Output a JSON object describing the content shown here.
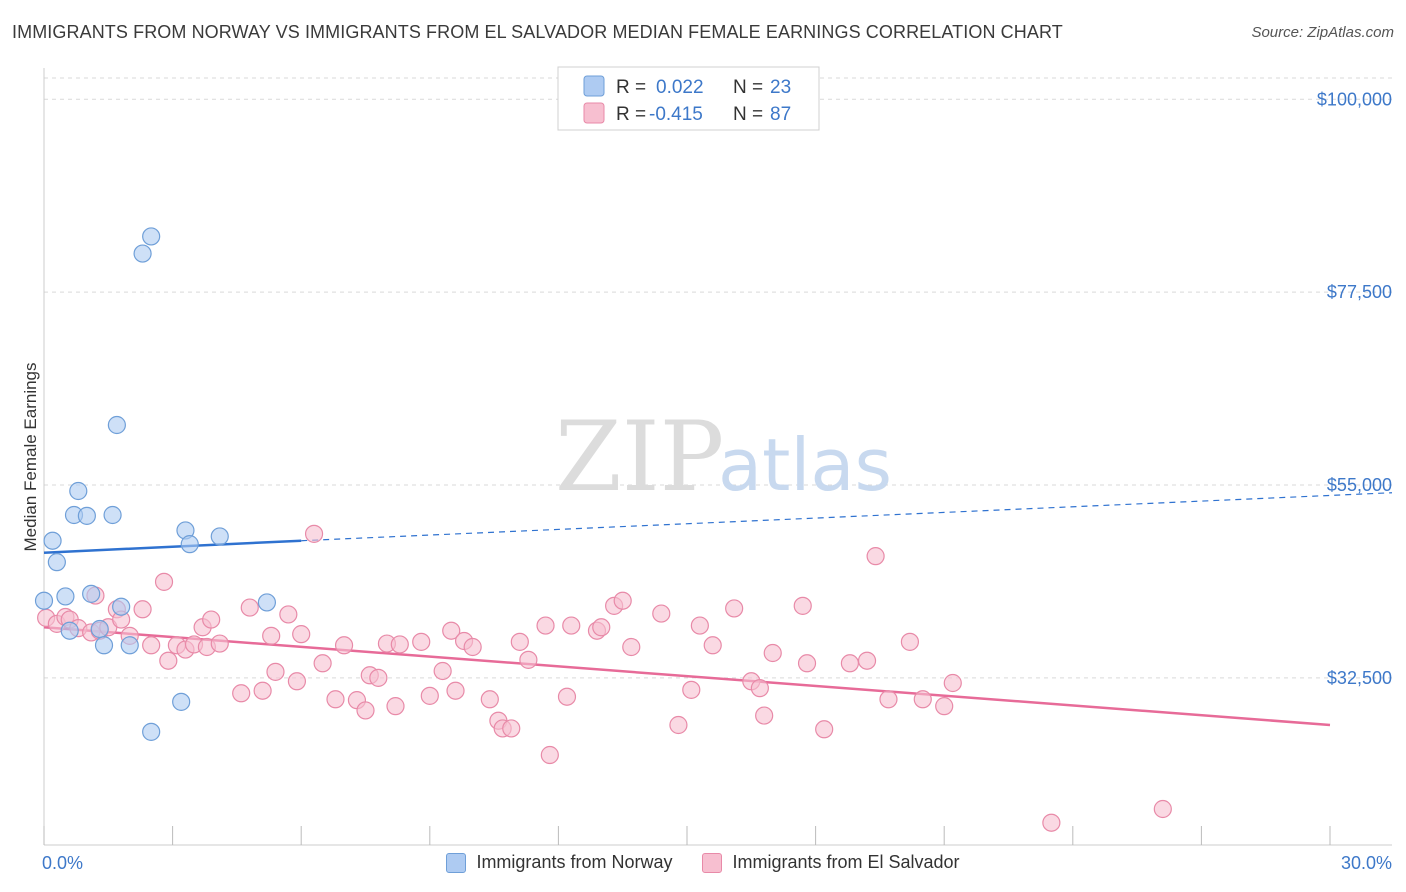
{
  "title": "IMMIGRANTS FROM NORWAY VS IMMIGRANTS FROM EL SALVADOR MEDIAN FEMALE EARNINGS CORRELATION CHART",
  "source": "Source: ZipAtlas.com",
  "watermark": {
    "zip": "ZIP",
    "atlas": "atlas"
  },
  "colors": {
    "norway_fill": "#aecbf2",
    "norway_stroke": "#6f9fd8",
    "norway_line": "#2f72d0",
    "salvador_fill": "#f7bfd0",
    "salvador_stroke": "#e88aa8",
    "salvador_line": "#e76b98",
    "axis_text": "#3d78c9",
    "grid": "#d9d9d9"
  },
  "legend": {
    "rows": [
      {
        "r_label": "R =",
        "r_value": "0.022",
        "n_label": "N =",
        "n_value": "23"
      },
      {
        "r_label": "R =",
        "r_value": "-0.415",
        "n_label": "N =",
        "n_value": "87"
      }
    ]
  },
  "bottom_legend": [
    "Immigrants from Norway",
    "Immigrants from El Salvador"
  ],
  "chart_data": {
    "type": "scatter",
    "title": "IMMIGRANTS FROM NORWAY VS IMMIGRANTS FROM EL SALVADOR MEDIAN FEMALE EARNINGS CORRELATION CHART",
    "xlabel": "",
    "ylabel": "Median Female Earnings",
    "xlim": [
      0,
      30
    ],
    "ylim": [
      13000,
      104000
    ],
    "x_tick_labels": [
      {
        "value": 0,
        "label": "0.0%"
      },
      {
        "value": 30,
        "label": "30.0%"
      }
    ],
    "y_tick_labels": [
      {
        "value": 32500,
        "label": "$32,500"
      },
      {
        "value": 55000,
        "label": "$55,000"
      },
      {
        "value": 77500,
        "label": "$77,500"
      },
      {
        "value": 100000,
        "label": "$100,000"
      }
    ],
    "series": [
      {
        "name": "Immigrants from Norway",
        "r": 0.022,
        "n": 23,
        "trend": {
          "x0": 0,
          "y0": 47100,
          "x1": 30,
          "y1": 54100,
          "solid_until": 6.0
        },
        "points": [
          [
            0.0,
            41500
          ],
          [
            0.2,
            48500
          ],
          [
            0.3,
            46000
          ],
          [
            0.5,
            42000
          ],
          [
            0.6,
            38000
          ],
          [
            0.7,
            51500
          ],
          [
            0.8,
            54300
          ],
          [
            1.0,
            51400
          ],
          [
            1.1,
            42300
          ],
          [
            1.3,
            38200
          ],
          [
            1.4,
            36300
          ],
          [
            1.6,
            51500
          ],
          [
            1.7,
            62000
          ],
          [
            1.8,
            40800
          ],
          [
            2.0,
            36300
          ],
          [
            2.3,
            82000
          ],
          [
            2.5,
            84000
          ],
          [
            2.5,
            26200
          ],
          [
            3.2,
            29700
          ],
          [
            3.3,
            49700
          ],
          [
            3.4,
            48100
          ],
          [
            4.1,
            49000
          ],
          [
            5.2,
            41300
          ]
        ]
      },
      {
        "name": "Immigrants from El Salvador",
        "r": -0.415,
        "n": 87,
        "trend": {
          "x0": 0,
          "y0": 38400,
          "x1": 30,
          "y1": 27000
        },
        "points": [
          [
            0.05,
            39500
          ],
          [
            0.3,
            38800
          ],
          [
            0.5,
            39600
          ],
          [
            0.6,
            39300
          ],
          [
            0.8,
            38300
          ],
          [
            1.1,
            37800
          ],
          [
            1.2,
            42100
          ],
          [
            1.3,
            38000
          ],
          [
            1.5,
            38400
          ],
          [
            1.7,
            40500
          ],
          [
            1.8,
            39300
          ],
          [
            2.0,
            37400
          ],
          [
            2.3,
            40500
          ],
          [
            2.5,
            36300
          ],
          [
            2.8,
            43700
          ],
          [
            2.9,
            34500
          ],
          [
            3.1,
            36300
          ],
          [
            3.3,
            35800
          ],
          [
            3.5,
            36400
          ],
          [
            3.7,
            38400
          ],
          [
            3.8,
            36100
          ],
          [
            3.9,
            39300
          ],
          [
            4.1,
            36500
          ],
          [
            4.6,
            30700
          ],
          [
            4.8,
            40700
          ],
          [
            5.1,
            31000
          ],
          [
            5.3,
            37400
          ],
          [
            5.4,
            33200
          ],
          [
            5.7,
            39900
          ],
          [
            5.9,
            32100
          ],
          [
            6.0,
            37600
          ],
          [
            6.3,
            49300
          ],
          [
            6.5,
            34200
          ],
          [
            6.8,
            30000
          ],
          [
            7.0,
            36300
          ],
          [
            7.3,
            29900
          ],
          [
            7.5,
            28700
          ],
          [
            7.6,
            32800
          ],
          [
            7.8,
            32500
          ],
          [
            8.0,
            36500
          ],
          [
            8.2,
            29200
          ],
          [
            8.3,
            36400
          ],
          [
            8.8,
            36700
          ],
          [
            9.0,
            30400
          ],
          [
            9.3,
            33300
          ],
          [
            9.5,
            38000
          ],
          [
            9.6,
            31000
          ],
          [
            9.8,
            36800
          ],
          [
            10.0,
            36100
          ],
          [
            10.4,
            30000
          ],
          [
            10.6,
            27500
          ],
          [
            10.7,
            26600
          ],
          [
            10.9,
            26600
          ],
          [
            11.1,
            36700
          ],
          [
            11.3,
            34600
          ],
          [
            11.7,
            38600
          ],
          [
            11.8,
            23500
          ],
          [
            12.2,
            30300
          ],
          [
            12.3,
            38600
          ],
          [
            12.9,
            38000
          ],
          [
            13.0,
            38400
          ],
          [
            13.3,
            40900
          ],
          [
            13.5,
            41500
          ],
          [
            13.7,
            36100
          ],
          [
            14.4,
            40000
          ],
          [
            14.8,
            27000
          ],
          [
            15.1,
            31100
          ],
          [
            15.3,
            38600
          ],
          [
            15.6,
            36300
          ],
          [
            16.1,
            40600
          ],
          [
            16.5,
            32100
          ],
          [
            16.7,
            31300
          ],
          [
            16.8,
            28100
          ],
          [
            17.0,
            35400
          ],
          [
            17.7,
            40900
          ],
          [
            17.8,
            34200
          ],
          [
            18.2,
            26500
          ],
          [
            18.8,
            34200
          ],
          [
            19.2,
            34500
          ],
          [
            19.4,
            46700
          ],
          [
            19.7,
            30000
          ],
          [
            20.2,
            36700
          ],
          [
            20.5,
            30000
          ],
          [
            21.0,
            29200
          ],
          [
            21.2,
            31900
          ],
          [
            23.5,
            15600
          ],
          [
            26.1,
            17200
          ]
        ]
      }
    ]
  }
}
